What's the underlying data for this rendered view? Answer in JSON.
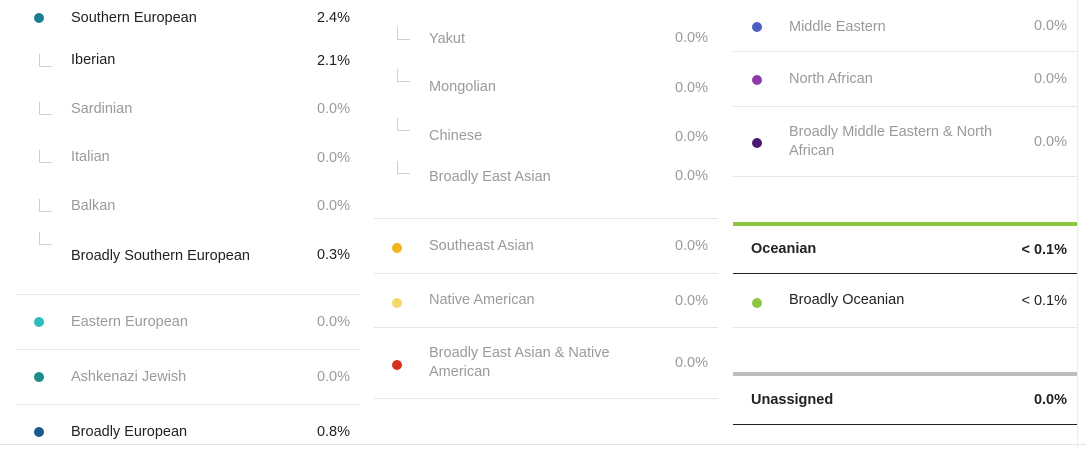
{
  "colors": {
    "southern_european": "#1b7f94",
    "eastern_european": "#2bbcbc",
    "ashkenazi_jewish": "#1f8a8a",
    "broadly_european": "#1c5a86",
    "southeast_asian": "#f5b21d",
    "native_american": "#f5d76a",
    "broadly_east_asian_native_american": "#d4301c",
    "middle_eastern": "#4a5fc1",
    "north_african": "#8b3aa8",
    "broadly_middle_eastern_north_african": "#4b1a6e",
    "broadly_oceanian": "#8dc63f",
    "oceanian_rule": "#8dc63f",
    "unassigned_rule": "#bdbdbd"
  },
  "col1": {
    "southern_european": {
      "label": "Southern European",
      "pct": "2.4%"
    },
    "iberian": {
      "label": "Iberian",
      "pct": "2.1%"
    },
    "sardinian": {
      "label": "Sardinian",
      "pct": "0.0%"
    },
    "italian": {
      "label": "Italian",
      "pct": "0.0%"
    },
    "balkan": {
      "label": "Balkan",
      "pct": "0.0%"
    },
    "broadly_southern_european": {
      "label": "Broadly Southern European",
      "pct": "0.3%"
    },
    "eastern_european": {
      "label": "Eastern European",
      "pct": "0.0%"
    },
    "ashkenazi_jewish": {
      "label": "Ashkenazi Jewish",
      "pct": "0.0%"
    },
    "broadly_european": {
      "label": "Broadly European",
      "pct": "0.8%"
    }
  },
  "col2": {
    "yakut": {
      "label": "Yakut",
      "pct": "0.0%"
    },
    "mongolian": {
      "label": "Mongolian",
      "pct": "0.0%"
    },
    "chinese": {
      "label": "Chinese",
      "pct": "0.0%"
    },
    "broadly_east_asian": {
      "label": "Broadly East Asian",
      "pct": "0.0%"
    },
    "southeast_asian": {
      "label": "Southeast Asian",
      "pct": "0.0%"
    },
    "native_american": {
      "label": "Native American",
      "pct": "0.0%"
    },
    "broadly_east_asian_native_american": {
      "label": "Broadly East Asian & Native American",
      "pct": "0.0%"
    }
  },
  "col3": {
    "middle_eastern": {
      "label": "Middle Eastern",
      "pct": "0.0%"
    },
    "north_african": {
      "label": "North African",
      "pct": "0.0%"
    },
    "broadly_middle_eastern_north_african": {
      "label": "Broadly Middle Eastern & North African",
      "pct": "0.0%"
    },
    "oceanian": {
      "label": "Oceanian",
      "pct": "< 0.1%"
    },
    "broadly_oceanian": {
      "label": "Broadly Oceanian",
      "pct": "< 0.1%"
    },
    "unassigned": {
      "label": "Unassigned",
      "pct": "0.0%"
    }
  }
}
